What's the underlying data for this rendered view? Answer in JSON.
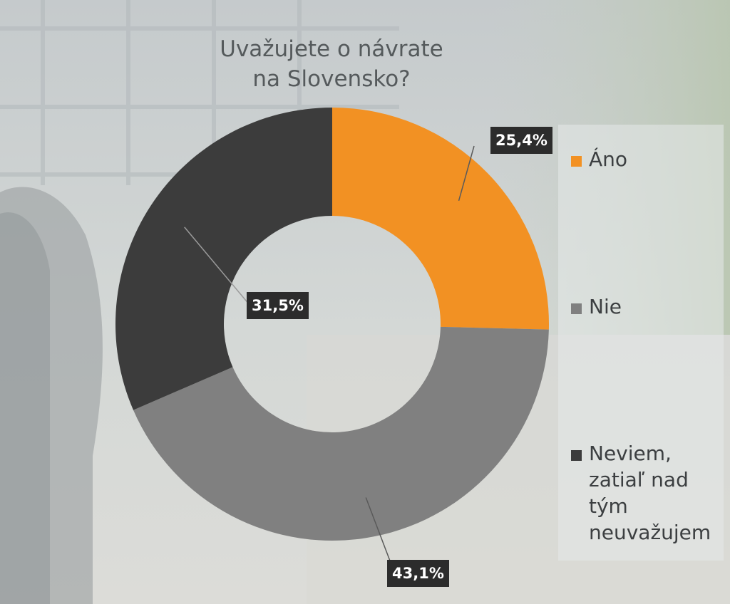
{
  "chart_data": {
    "type": "pie",
    "title": "Uvažujete o návrate na Slovensko?",
    "title_lines": [
      "Uvažujete o návrate",
      "na Slovensko?"
    ],
    "categories": [
      "Áno",
      "Nie",
      "Neviem, zatiaľ nad tým neuvažujem"
    ],
    "values": [
      25.4,
      43.1,
      31.5
    ],
    "value_labels": [
      "25,4%",
      "43,1%",
      "31,5%"
    ],
    "colors": [
      "#f29123",
      "#808080",
      "#3c3c3c"
    ],
    "legend": {
      "placement": "right",
      "items": [
        {
          "lines": [
            "Áno"
          ],
          "color": "#f29123"
        },
        {
          "lines": [
            "Nie"
          ],
          "color": "#808080"
        },
        {
          "lines": [
            "Neviem,",
            "zatiaľ nad",
            "tým",
            "neuvažujem"
          ],
          "color": "#3c3c3c"
        }
      ]
    },
    "donut": true
  }
}
